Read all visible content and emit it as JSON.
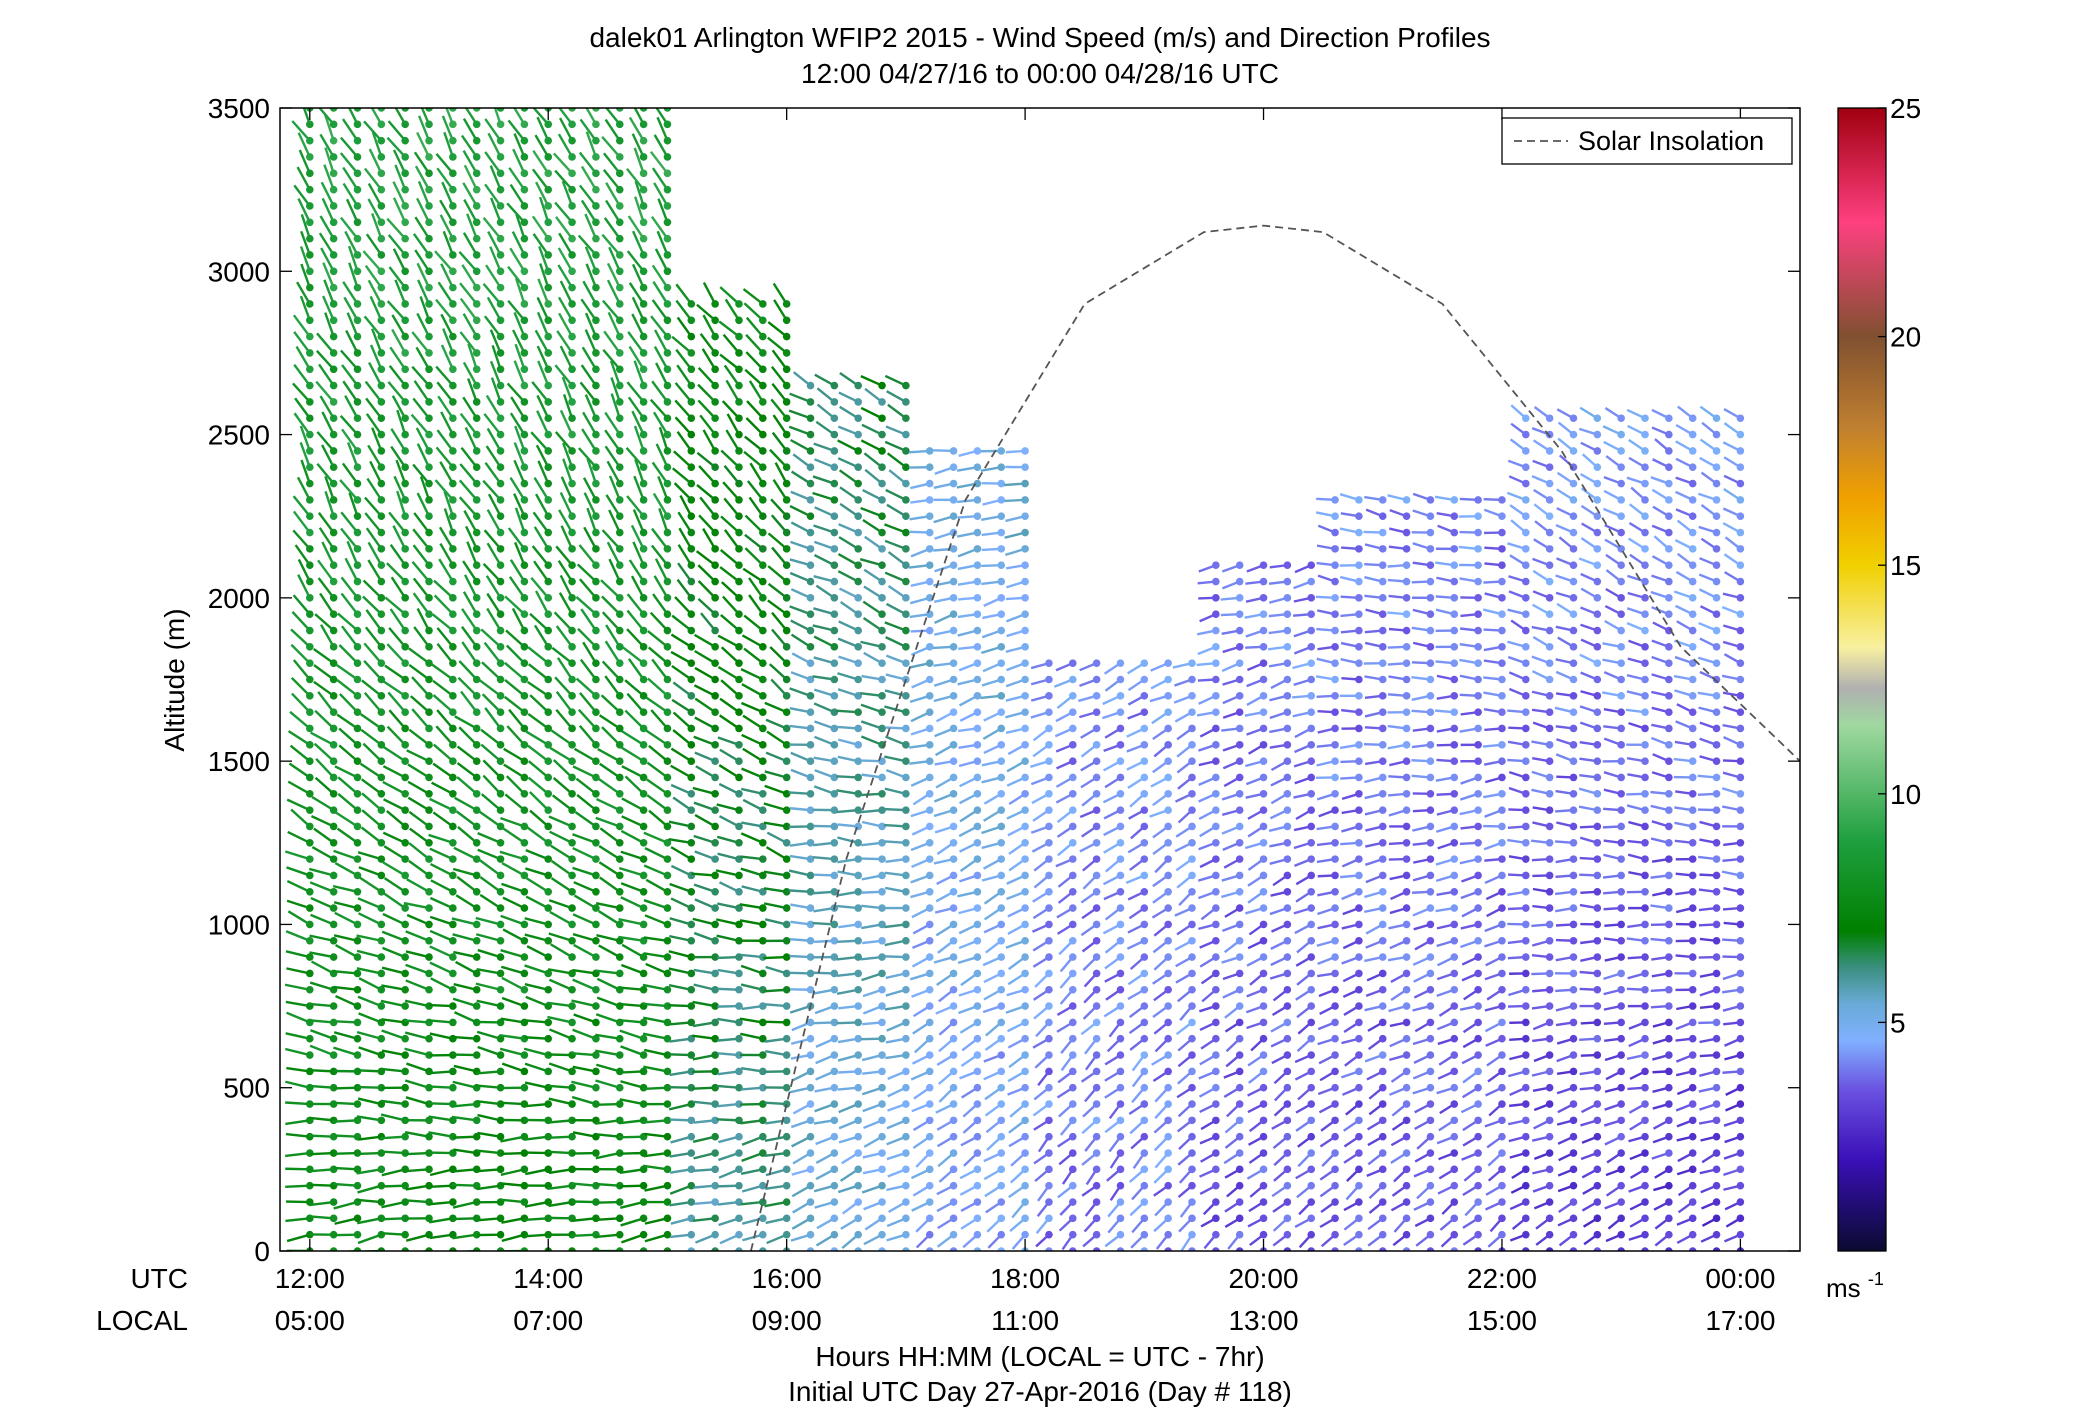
{
  "chart_data": {
    "type": "scatter",
    "title": "dalek01 Arlington WFIP2 2015 - Wind Speed (m/s) and Direction Profiles",
    "subtitle": "12:00 04/27/16 to 00:00 04/28/16  UTC",
    "ylabel": "Altitude (m)",
    "ylim": [
      0,
      3500
    ],
    "yticks": [
      "0",
      "500",
      "1000",
      "1500",
      "2000",
      "2500",
      "3000",
      "3500"
    ],
    "ytick_values": [
      0,
      500,
      1000,
      1500,
      2000,
      2500,
      3000,
      3500
    ],
    "xlim_hours": [
      11.75,
      24.5
    ],
    "xtick_hours": [
      12,
      14,
      16,
      18,
      20,
      22,
      24
    ],
    "xrow_utc_label": "UTC",
    "xrow_local_label": "LOCAL",
    "xticks_utc": [
      "12:00",
      "14:00",
      "16:00",
      "18:00",
      "20:00",
      "22:00",
      "00:00"
    ],
    "xticks_local": [
      "05:00",
      "07:00",
      "09:00",
      "11:00",
      "13:00",
      "15:00",
      "17:00"
    ],
    "xlabel": "Hours HH:MM  (LOCAL = UTC - 7hr)",
    "xlabel2": "Initial UTC Day 27-Apr-2016 (Day # 118)",
    "legend": {
      "label": "Solar Insolation",
      "placement": "top-right",
      "style": "dashed"
    },
    "colorbar": {
      "ticks": [
        "5",
        "10",
        "15",
        "20",
        "25"
      ],
      "tick_values": [
        5,
        10,
        15,
        20,
        25
      ],
      "range": [
        0,
        25
      ],
      "unit_label": "ms",
      "unit_exponent": "-1",
      "stops": [
        {
          "v": 0,
          "c": "#0a0a30"
        },
        {
          "v": 2,
          "c": "#3a10b8"
        },
        {
          "v": 3.5,
          "c": "#6a50e0"
        },
        {
          "v": 4.6,
          "c": "#80b0ff"
        },
        {
          "v": 5.4,
          "c": "#6aaad8"
        },
        {
          "v": 6.2,
          "c": "#3a9080"
        },
        {
          "v": 7.0,
          "c": "#008000"
        },
        {
          "v": 9.0,
          "c": "#20a040"
        },
        {
          "v": 11.5,
          "c": "#a0d8a0"
        },
        {
          "v": 12.3,
          "c": "#b0b0b0"
        },
        {
          "v": 13.2,
          "c": "#f8f0a0"
        },
        {
          "v": 15.0,
          "c": "#f0d000"
        },
        {
          "v": 16.5,
          "c": "#f0a000"
        },
        {
          "v": 18.0,
          "c": "#c08030"
        },
        {
          "v": 20.0,
          "c": "#805030"
        },
        {
          "v": 22.5,
          "c": "#ff4080"
        },
        {
          "v": 25.0,
          "c": "#a00010"
        }
      ]
    },
    "solar_insolation_curve": {
      "x_hours": [
        15.7,
        16.5,
        17.5,
        18.5,
        19.5,
        20.0,
        20.5,
        21.5,
        22.5,
        23.5,
        24.5
      ],
      "altitude_equiv": [
        0,
        1200,
        2300,
        2900,
        3120,
        3140,
        3120,
        2900,
        2450,
        1850,
        1500
      ]
    },
    "series": [
      {
        "name": "wind profiles",
        "profile_interval_hours": 0.2,
        "altitude_step_m": 50,
        "segments": [
          {
            "t0": 12.0,
            "t1": 15.0,
            "hmax": 3500,
            "speed_low": 7.5,
            "speed_high": 9.0,
            "dir_low": 260,
            "dir_high": 330
          },
          {
            "t0": 15.0,
            "t1": 16.0,
            "hmax": 2900,
            "speed_low": 6.0,
            "speed_high": 8.0,
            "dir_low": 250,
            "dir_high": 320
          },
          {
            "t0": 16.0,
            "t1": 17.0,
            "hmax": 2650,
            "speed_low": 5.0,
            "speed_high": 7.0,
            "dir_low": 240,
            "dir_high": 300
          },
          {
            "t0": 17.0,
            "t1": 18.0,
            "hmax": 2450,
            "speed_low": 4.5,
            "speed_high": 5.5,
            "dir_low": 230,
            "dir_high": 260
          },
          {
            "t0": 18.0,
            "t1": 19.5,
            "hmax": 1800,
            "speed_low": 4.0,
            "speed_high": 4.5,
            "dir_low": 220,
            "dir_high": 250
          },
          {
            "t0": 19.5,
            "t1": 20.5,
            "hmax": 2100,
            "speed_low": 3.5,
            "speed_high": 4.5,
            "dir_low": 230,
            "dir_high": 260
          },
          {
            "t0": 20.5,
            "t1": 22.0,
            "hmax": 2300,
            "speed_low": 3.5,
            "speed_high": 4.5,
            "dir_low": 230,
            "dir_high": 280
          },
          {
            "t0": 22.0,
            "t1": 24.0,
            "hmax": 2550,
            "speed_low": 3.0,
            "speed_high": 5.0,
            "dir_low": 240,
            "dir_high": 300
          }
        ]
      }
    ]
  }
}
